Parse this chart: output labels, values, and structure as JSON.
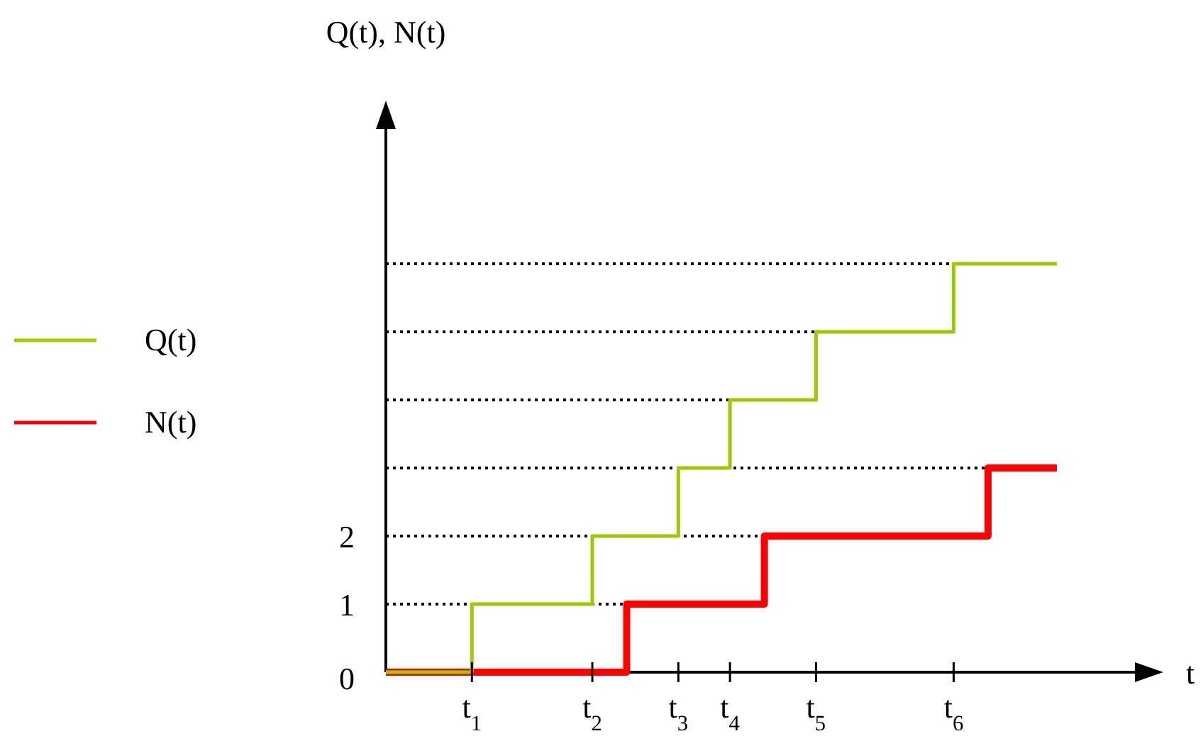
{
  "chart_data": {
    "type": "step",
    "xlabel": "t",
    "ylabel": "Q(t), N(t)",
    "ylim": [
      0,
      8
    ],
    "categories": [
      null,
      null,
      null,
      null,
      null,
      "t$_{1}$",
      null,
      null,
      null,
      null,
      null,
      null,
      "t$_{2}$",
      null,
      null,
      null,
      null,
      "t$_{3}$",
      null,
      null,
      "t$_{4}$",
      null,
      null,
      null,
      null,
      "t$_{5}$",
      null,
      null,
      null,
      null,
      null,
      null,
      null,
      "t$_{6}$",
      null,
      null,
      null,
      null,
      null,
      null
    ],
    "yticks": [
      0,
      1,
      2
    ],
    "ref_lines": [
      {
        "axis": "y",
        "value": 1,
        "line_style": "dotted"
      },
      {
        "axis": "y",
        "value": 2,
        "line_style": "dotted"
      },
      {
        "axis": "y",
        "value": 3,
        "line_style": "dotted"
      },
      {
        "axis": "y",
        "value": 4,
        "line_style": "dotted"
      },
      {
        "axis": "y",
        "value": 5,
        "line_style": "dotted"
      },
      {
        "axis": "y",
        "value": 6,
        "line_style": "dotted"
      }
    ],
    "legend": "left",
    "line_style": "solid",
    "marker": "none",
    "series": [
      {
        "name": "Q(t)",
        "color": "#99cc00",
        "values": [
          0,
          0,
          0,
          0,
          0,
          1,
          1,
          1,
          1,
          1,
          1,
          1,
          2,
          2,
          2,
          2,
          2,
          3,
          3,
          3,
          4,
          4,
          4,
          4,
          4,
          5,
          5,
          5,
          5,
          5,
          5,
          5,
          5,
          6,
          6,
          6,
          6,
          6,
          6,
          6
        ]
      },
      {
        "name": "N(t)",
        "color": "#ff0000",
        "values": [
          0,
          0,
          0,
          0,
          0,
          0,
          0,
          0,
          0,
          0,
          0,
          0,
          0,
          0,
          1,
          1,
          1,
          1,
          1,
          1,
          1,
          1,
          2,
          2,
          2,
          2,
          2,
          2,
          2,
          2,
          2,
          2,
          2,
          2,
          2,
          3,
          3,
          3,
          3,
          3
        ]
      }
    ]
  }
}
